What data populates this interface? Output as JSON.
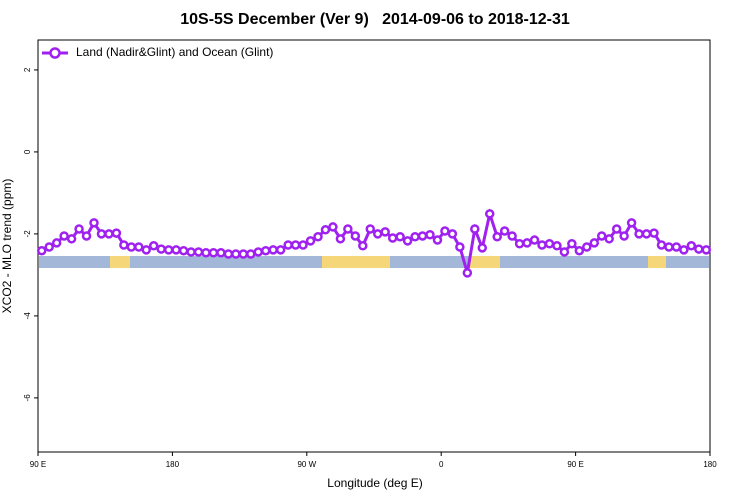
{
  "chart_data": {
    "type": "line",
    "title": "10S-5S December (Ver 9)   2014-09-06 to 2018-12-31",
    "xlabel": "Longitude (deg E)",
    "ylabel": "XCO2 - MLO trend (ppm)",
    "xlim": [
      90,
      540
    ],
    "ylim": [
      2.73,
      -7.32
    ],
    "xticks": [
      {
        "value": 90,
        "label": "90 E"
      },
      {
        "value": 180,
        "label": "180"
      },
      {
        "value": 270,
        "label": "90 W"
      },
      {
        "value": 360,
        "label": "0"
      },
      {
        "value": 450,
        "label": "90 E"
      },
      {
        "value": 540,
        "label": "180"
      }
    ],
    "yticks": [
      2,
      0,
      -2,
      -4,
      -6
    ],
    "legend": "upper left",
    "x": [
      92.5,
      97.5,
      102.5,
      107.5,
      112.5,
      117.5,
      122.5,
      127.5,
      132.5,
      137.5,
      142.5,
      147.5,
      152.5,
      157.5,
      162.5,
      167.5,
      172.5,
      177.5,
      182.5,
      187.5,
      192.5,
      197.5,
      202.5,
      207.5,
      212.5,
      217.5,
      222.5,
      227.5,
      232.5,
      237.5,
      242.5,
      247.5,
      252.5,
      257.5,
      262.5,
      267.5,
      272.5,
      277.5,
      282.5,
      287.5,
      292.5,
      297.5,
      302.5,
      307.5,
      312.5,
      317.5,
      322.5,
      327.5,
      332.5,
      337.5,
      342.5,
      347.5,
      352.5,
      357.5,
      362.5,
      367.5,
      372.5,
      377.5,
      382.5,
      387.5,
      392.5,
      397.5,
      402.5,
      407.5,
      412.5,
      417.5,
      422.5,
      427.5,
      432.5,
      437.5,
      442.5,
      447.5,
      452.5,
      457.5,
      462.5,
      467.5,
      472.5,
      477.5,
      482.5,
      487.5,
      492.5,
      497.5,
      502.5,
      507.5,
      512.5,
      517.5,
      522.5,
      527.5,
      532.5,
      537.5
    ],
    "series": [
      {
        "name": "Land (Nadir&Glint) and Ocean (Glint)",
        "color": "#a020f0",
        "values": [
          -2.41,
          -2.32,
          -2.22,
          -2.05,
          -2.12,
          -1.88,
          -2.05,
          -1.73,
          -2.0,
          -2.0,
          -1.98,
          -2.27,
          -2.32,
          -2.32,
          -2.39,
          -2.29,
          -2.37,
          -2.39,
          -2.39,
          -2.41,
          -2.44,
          -2.44,
          -2.46,
          -2.46,
          -2.46,
          -2.49,
          -2.49,
          -2.49,
          -2.49,
          -2.44,
          -2.41,
          -2.39,
          -2.39,
          -2.27,
          -2.27,
          -2.27,
          -2.17,
          -2.07,
          -1.9,
          -1.83,
          -2.12,
          -1.88,
          -2.05,
          -2.29,
          -1.88,
          -2.0,
          -1.95,
          -2.1,
          -2.07,
          -2.17,
          -2.07,
          -2.05,
          -2.02,
          -2.15,
          -1.93,
          -2.0,
          -2.32,
          -2.95,
          -1.88,
          -2.34,
          -1.51,
          -2.07,
          -1.93,
          -2.05,
          -2.24,
          -2.22,
          -2.15,
          -2.27,
          -2.24,
          -2.29,
          -2.44,
          -2.24,
          -2.41,
          -2.32,
          -2.22,
          -2.05,
          -2.12,
          -1.88,
          -2.05,
          -1.73,
          -2.0,
          -2.0,
          -1.98,
          -2.27,
          -2.32,
          -2.32,
          -2.39,
          -2.29,
          -2.37,
          -2.39
        ]
      }
    ]
  }
}
